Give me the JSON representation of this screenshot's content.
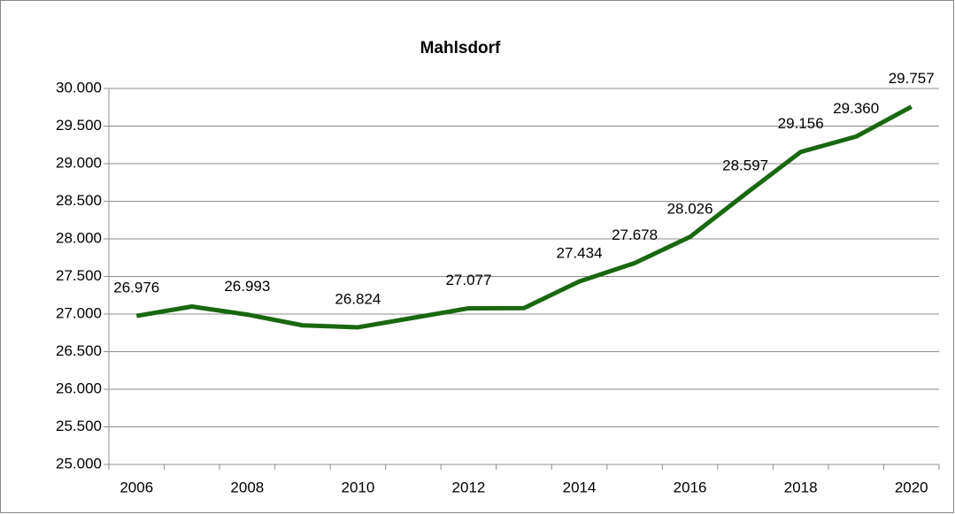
{
  "chart_data": {
    "type": "line",
    "title": "Mahlsdorf",
    "categories": [
      "2006",
      null,
      "2008",
      null,
      "2010",
      null,
      "2012",
      null,
      "2014",
      null,
      "2016",
      null,
      "2018",
      null,
      "2020"
    ],
    "series": [
      {
        "name": "Mahlsdorf",
        "color": "#19680f",
        "values": [
          26976,
          27100,
          26993,
          26850,
          26824,
          26950,
          27077,
          27080,
          27434,
          27678,
          28026,
          28597,
          29156,
          29360,
          29757
        ],
        "value_labels": [
          "26.976",
          null,
          "26.993",
          null,
          "26.824",
          null,
          "27.077",
          null,
          "27.434",
          "27.678",
          "28.026",
          "28.597",
          "29.156",
          "29.360",
          "29.757"
        ]
      }
    ],
    "ylim": [
      25000,
      30000
    ],
    "yticks": [
      {
        "value": 25000,
        "label": "25.000"
      },
      {
        "value": 25500,
        "label": "25.500"
      },
      {
        "value": 26000,
        "label": "26.000"
      },
      {
        "value": 26500,
        "label": "26.500"
      },
      {
        "value": 27000,
        "label": "27.000"
      },
      {
        "value": 27500,
        "label": "27.500"
      },
      {
        "value": 28000,
        "label": "28.000"
      },
      {
        "value": 28500,
        "label": "28.500"
      },
      {
        "value": 29000,
        "label": "29.000"
      },
      {
        "value": 29500,
        "label": "29.500"
      },
      {
        "value": 30000,
        "label": "30.000"
      }
    ],
    "grid": true
  }
}
